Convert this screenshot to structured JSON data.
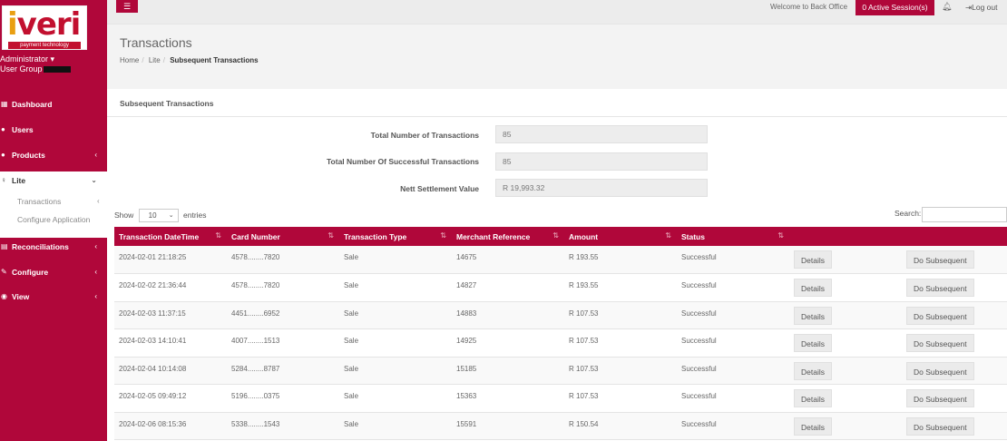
{
  "brand": {
    "logo_text": "iveri",
    "tagline": "payment technology"
  },
  "user": {
    "role": "Administrator ▾",
    "group": "User Group"
  },
  "sidebar": {
    "items": [
      {
        "label": "Dashboard",
        "icon": "dashboard-icon"
      },
      {
        "label": "Users",
        "icon": "users-icon"
      },
      {
        "label": "Products",
        "icon": "products-icon"
      },
      {
        "label": "Lite",
        "icon": "lite-icon"
      },
      {
        "label": "Reconciliations",
        "icon": "reconciliations-icon"
      },
      {
        "label": "Configure",
        "icon": "configure-icon"
      },
      {
        "label": "View",
        "icon": "view-icon"
      }
    ],
    "sub_items": [
      {
        "label": "Transactions"
      },
      {
        "label": "Configure Application"
      }
    ]
  },
  "topbar": {
    "menu_icon": "hamburger-icon",
    "welcome": "Welcome to Back Office",
    "sessions": "0 Active Session(s)",
    "logout": "Log out"
  },
  "page": {
    "title": "Transactions",
    "breadcrumb": [
      "Home",
      "Lite",
      "Subsequent Transactions"
    ]
  },
  "panel": {
    "title": "Subsequent Transactions",
    "stats": [
      {
        "label": "Total Number of Transactions",
        "value": "85"
      },
      {
        "label": "Total Number Of Successful Transactions",
        "value": "85"
      },
      {
        "label": "Nett Settlement Value",
        "value": "R 19,993.32"
      }
    ],
    "show_label": "Show",
    "entries_value": "10",
    "entries_label": "entries",
    "search_label": "Search:"
  },
  "table": {
    "headers": [
      "Transaction DateTime",
      "Card Number",
      "Transaction Type",
      "Merchant Reference",
      "Amount",
      "Status"
    ],
    "details_label": "Details",
    "subsequent_label": "Do Subsequent",
    "rows": [
      [
        "2024-02-01 21:18:25",
        "4578........7820",
        "Sale",
        "14675",
        "R 193.55",
        "Successful"
      ],
      [
        "2024-02-02 21:36:44",
        "4578........7820",
        "Sale",
        "14827",
        "R 193.55",
        "Successful"
      ],
      [
        "2024-02-03 11:37:15",
        "4451........6952",
        "Sale",
        "14883",
        "R 107.53",
        "Successful"
      ],
      [
        "2024-02-03 14:10:41",
        "4007........1513",
        "Sale",
        "14925",
        "R 107.53",
        "Successful"
      ],
      [
        "2024-02-04 10:14:08",
        "5284........8787",
        "Sale",
        "15185",
        "R 107.53",
        "Successful"
      ],
      [
        "2024-02-05 09:49:12",
        "5196........0375",
        "Sale",
        "15363",
        "R 107.53",
        "Successful"
      ],
      [
        "2024-02-06 08:15:36",
        "5338........1543",
        "Sale",
        "15591",
        "R 150.54",
        "Successful"
      ]
    ]
  },
  "colors": {
    "brand": "#b0073a"
  }
}
